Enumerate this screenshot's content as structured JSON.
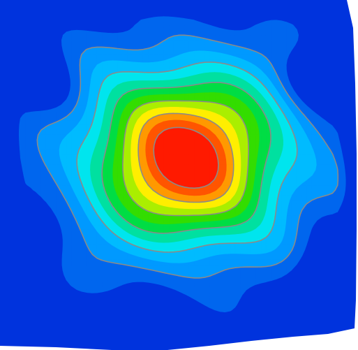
{
  "chart_data": {
    "type": "heatmap",
    "colormap": [
      "#0033dd",
      "#0066ee",
      "#0099ff",
      "#00bbff",
      "#00e5ee",
      "#00e0a0",
      "#00dd44",
      "#33dd00",
      "#aaee00",
      "#ffee00",
      "#ff9900",
      "#ff5500",
      "#ff1a00"
    ],
    "contour_line_color": "#8a8a8a",
    "grid": false,
    "peak": {
      "x": 0.52,
      "y": 0.55
    },
    "spread": {
      "x": 0.2,
      "y": 0.18
    },
    "cold_spots": [
      {
        "x": 0.89,
        "y": 0.78,
        "level": 0.05
      },
      {
        "x": 0.9,
        "y": 0.2,
        "level": 0.12
      },
      {
        "x": 0.15,
        "y": 0.75,
        "level": 0.18
      },
      {
        "x": 0.05,
        "y": 0.3,
        "level": 0.05
      },
      {
        "x": 0.3,
        "y": 0.06,
        "level": 0.1
      }
    ]
  }
}
